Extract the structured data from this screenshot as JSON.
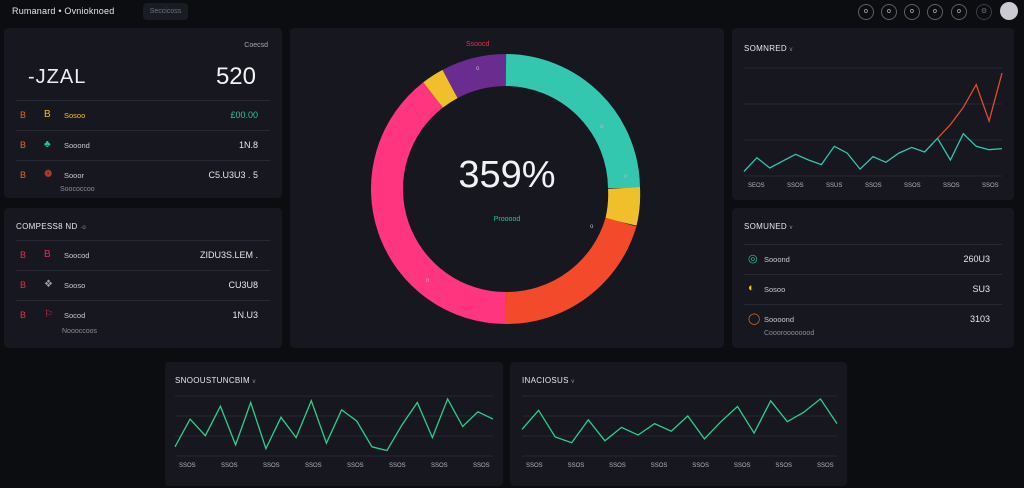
{
  "header": {
    "brand": "Rumanard • Ovnioknoed",
    "tab_chip": "Seccicoss",
    "icon_buttons": [
      "o",
      "o",
      "o",
      "o",
      "o",
      "⚙"
    ]
  },
  "kpi_panel": {
    "big_label": "-JZAL",
    "big_value": "520",
    "corner_label": "Coecsd",
    "rows": [
      {
        "icon": "B",
        "icon_color": "#e06a2a",
        "glyph": "B",
        "glyph_color": "#f0c02a",
        "label": "Sosoo",
        "value": "£00.00",
        "value_color": "#29c79b"
      },
      {
        "icon": "B",
        "icon_color": "#e06a2a",
        "glyph": "♣",
        "glyph_color": "#27c2a0",
        "label": "Sooond",
        "value": "1N.8",
        "value_color": "#e6e8ec"
      },
      {
        "icon": "B",
        "icon_color": "#e06a2a",
        "glyph": "❁",
        "glyph_color": "#f0503a",
        "label": "Sooor",
        "value": "C5.U3U3 . 5",
        "value_color": "#e6e8ec"
      }
    ],
    "footer": "Soococcoo"
  },
  "components_panel": {
    "title": "COMPESS8 ND",
    "title_suffix": "·o",
    "rows": [
      {
        "icon": "B",
        "icon_color": "#e0334f",
        "glyph": "B",
        "glyph_color": "#e0334f",
        "label": "Soocod",
        "value": "ZIDU3S.LEM ."
      },
      {
        "icon": "B",
        "icon_color": "#e0334f",
        "glyph": "❖",
        "glyph_color": "#9aa0ac",
        "label": "Sooso",
        "value": "CU3U8"
      },
      {
        "icon": "B",
        "icon_color": "#e0334f",
        "glyph": "⚐",
        "glyph_color": "#e0334f",
        "label": "Socod",
        "value": "1N.U3"
      }
    ],
    "footer": "Noooccoos"
  },
  "donut_panel": {
    "top_label": "Ssoocd",
    "center_value": "359%",
    "center_label": "Prooood",
    "segment_marks": [
      "o",
      "o",
      "o",
      "o",
      "o"
    ]
  },
  "chart_data": [
    {
      "type": "line",
      "id": "top-right",
      "title": "SOMNRED",
      "title_suffix": "v",
      "tick_labels": [
        "SEOS",
        "SSOS",
        "SSUS",
        "SSOS",
        "SSOS",
        "SSOS",
        "SSOS"
      ],
      "grid": true,
      "series": [
        {
          "color": "#33c7b0",
          "values": [
            8,
            32,
            14,
            26,
            38,
            28,
            20,
            52,
            40,
            12,
            34,
            24,
            40,
            50,
            42,
            66,
            28,
            74,
            52,
            46,
            48
          ]
        },
        {
          "color": "#e34a2c",
          "values": [
            null,
            null,
            null,
            null,
            null,
            null,
            null,
            null,
            null,
            null,
            null,
            null,
            null,
            null,
            null,
            66,
            90,
            120,
            160,
            96,
            180
          ]
        }
      ]
    },
    {
      "type": "line",
      "id": "bottom-left",
      "title": "SNOOUSTUNCBIM",
      "title_suffix": "v",
      "tick_labels": [
        "SSOS",
        "SSOS",
        "SSOS",
        "SSOS",
        "SSOS",
        "SSOS",
        "SSOS",
        "SSOS"
      ],
      "grid": true,
      "series": [
        {
          "color": "#2bd08a",
          "values": [
            10,
            40,
            22,
            54,
            12,
            58,
            8,
            42,
            20,
            60,
            14,
            50,
            38,
            10,
            6,
            34,
            58,
            20,
            62,
            32,
            48,
            40
          ]
        }
      ]
    },
    {
      "type": "line",
      "id": "bottom-right",
      "title": "INACIOSUS",
      "title_suffix": "v",
      "tick_labels": [
        "SSOS",
        "SSOS",
        "SSOS",
        "SSOS",
        "SSOS",
        "SSOS",
        "SSOS",
        "SSOS"
      ],
      "grid": true,
      "series": [
        {
          "color": "#2bd08a",
          "values": [
            28,
            48,
            20,
            14,
            38,
            16,
            30,
            22,
            34,
            26,
            42,
            18,
            36,
            52,
            24,
            58,
            36,
            46,
            60,
            34
          ]
        }
      ]
    }
  ],
  "summary_panel": {
    "title": "SOMUNED",
    "title_suffix": "v",
    "rows": [
      {
        "glyph": "◎",
        "glyph_color": "#27c2a0",
        "label": "Sooond",
        "value": "260U3"
      },
      {
        "glyph": "◐",
        "glyph_color": "#f0c02a",
        "label": "Sosoo",
        "value": "SU3"
      },
      {
        "glyph": "◯",
        "glyph_color": "#e06a2a",
        "label": "Soooond",
        "value": "3103"
      }
    ],
    "footer": "Coooroooooood"
  }
}
